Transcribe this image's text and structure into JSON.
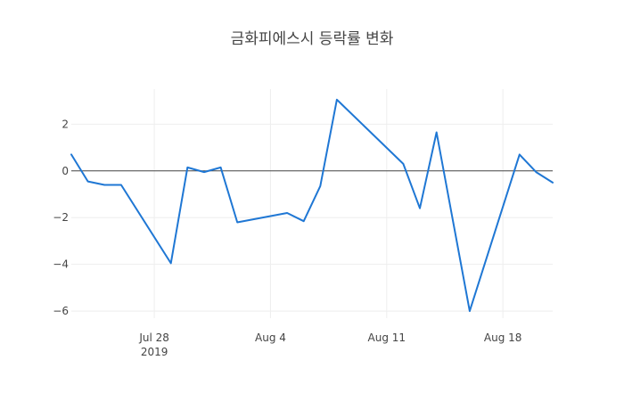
{
  "chart_data": {
    "type": "line",
    "title": "금화피에스시 등락률 변화",
    "xlabel": "",
    "ylabel": "",
    "x_range": [
      "2019-07-23",
      "2019-08-21"
    ],
    "ylim": [
      -6.3,
      3.5
    ],
    "grid": true,
    "y_ticks": [
      2,
      0,
      -2,
      -4,
      -6
    ],
    "y_tick_labels": [
      "2",
      "0",
      "−2",
      "−4",
      "−6"
    ],
    "x_ticks": [
      {
        "date": "2019-07-28",
        "label": "Jul 28",
        "sublabel": "2019"
      },
      {
        "date": "2019-08-04",
        "label": "Aug 4",
        "sublabel": ""
      },
      {
        "date": "2019-08-11",
        "label": "Aug 11",
        "sublabel": ""
      },
      {
        "date": "2019-08-18",
        "label": "Aug 18",
        "sublabel": ""
      }
    ],
    "line_color": "#1f77d4",
    "series": [
      {
        "x": [
          "2019-07-23",
          "2019-07-24",
          "2019-07-25",
          "2019-07-26",
          "2019-07-29",
          "2019-07-30",
          "2019-07-31",
          "2019-08-01",
          "2019-08-02",
          "2019-08-05",
          "2019-08-06",
          "2019-08-07",
          "2019-08-08",
          "2019-08-12",
          "2019-08-13",
          "2019-08-14",
          "2019-08-16",
          "2019-08-19",
          "2019-08-20",
          "2019-08-21"
        ],
        "y": [
          0.7,
          -0.45,
          -0.6,
          -0.6,
          -3.95,
          0.15,
          -0.05,
          0.15,
          -2.2,
          -1.8,
          -2.15,
          -0.65,
          3.05,
          0.3,
          -1.6,
          1.65,
          -6.0,
          0.7,
          -0.05,
          -0.5
        ]
      }
    ]
  }
}
